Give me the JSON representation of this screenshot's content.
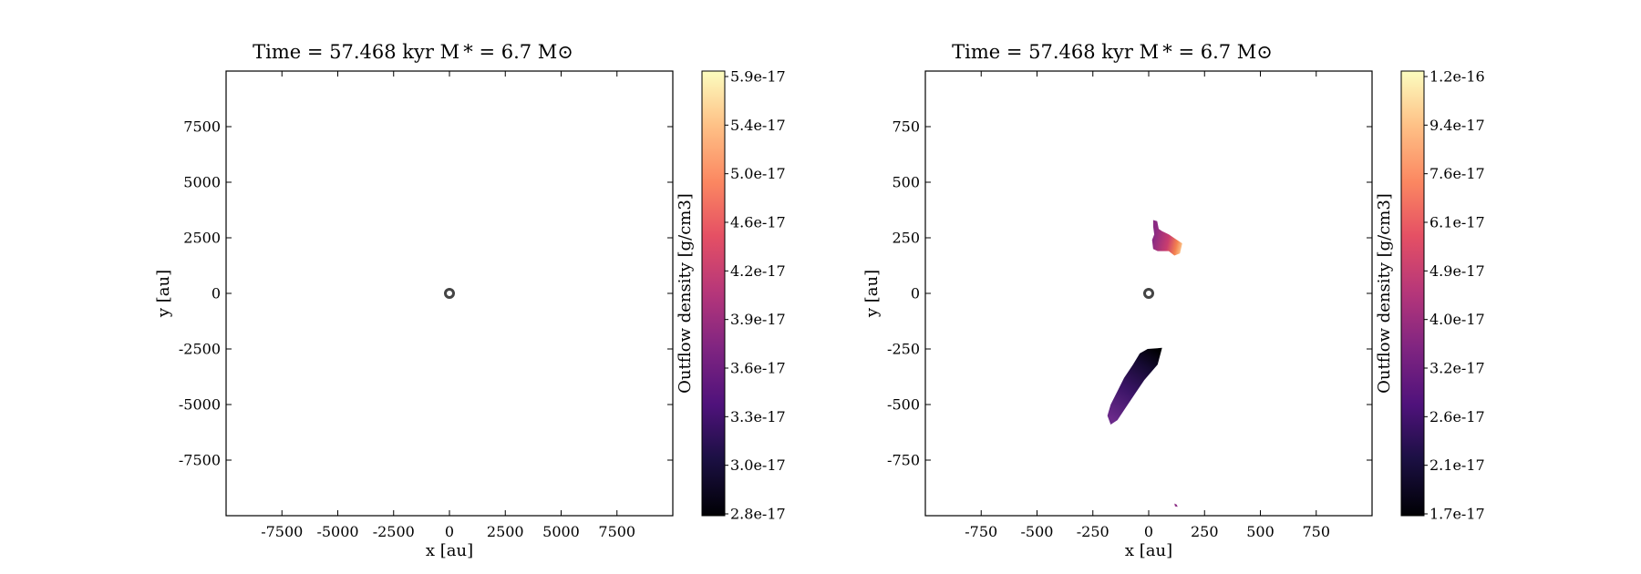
{
  "chart_data": [
    {
      "type": "heatmap",
      "title": "Time = 57.468 kyr    M * = 6.7 M⊙",
      "xlabel": "x [au]",
      "ylabel": "y [au]",
      "xlim": [
        -10000,
        10000
      ],
      "ylim": [
        -10000,
        10000
      ],
      "xticks": [
        -7500,
        -5000,
        -2500,
        0,
        2500,
        5000,
        7500
      ],
      "yticks": [
        7500,
        5000,
        2500,
        0,
        -2500,
        -5000,
        -7500
      ],
      "colorbar": {
        "label": "Outflow density [g/cm3]",
        "colormap": "magma",
        "min": 2.8e-17,
        "max": 5.9e-17,
        "ticks": [
          "2.8e-17",
          "3.0e-17",
          "3.3e-17",
          "3.6e-17",
          "3.9e-17",
          "4.2e-17",
          "4.6e-17",
          "5.0e-17",
          "5.4e-17",
          "5.9e-17"
        ]
      },
      "star": {
        "x": 0,
        "y": 0
      },
      "regions": []
    },
    {
      "type": "heatmap",
      "title": "Time = 57.468 kyr    M * = 6.7 M⊙",
      "xlabel": "x [au]",
      "ylabel": "y [au]",
      "xlim": [
        -1000,
        1000
      ],
      "ylim": [
        -1000,
        1000
      ],
      "xticks": [
        -750,
        -500,
        -250,
        0,
        250,
        500,
        750
      ],
      "yticks": [
        750,
        500,
        250,
        0,
        -250,
        -500,
        -750
      ],
      "colorbar": {
        "label": "Outflow density [g/cm3]",
        "colormap": "magma",
        "min": 1.7e-17,
        "max": 1.2e-16,
        "ticks": [
          "1.7e-17",
          "2.1e-17",
          "2.6e-17",
          "3.2e-17",
          "4.0e-17",
          "4.9e-17",
          "6.1e-17",
          "7.6e-17",
          "9.4e-17",
          "1.2e-16"
        ]
      },
      "star": {
        "x": 0,
        "y": 0
      },
      "regions": [
        {
          "name": "northern-lobe",
          "outline": [
            [
              20,
              330
            ],
            [
              38,
              325
            ],
            [
              45,
              290
            ],
            [
              60,
              280
            ],
            [
              90,
              265
            ],
            [
              120,
              245
            ],
            [
              150,
              225
            ],
            [
              140,
              180
            ],
            [
              115,
              170
            ],
            [
              90,
              190
            ],
            [
              60,
              190
            ],
            [
              40,
              190
            ],
            [
              20,
              200
            ],
            [
              15,
              240
            ],
            [
              25,
              265
            ],
            [
              20,
              300
            ]
          ],
          "gradient": {
            "from": [
              20,
              240
            ],
            "to": [
              150,
              210
            ],
            "stops": [
              [
                0,
                "#8a2a83"
              ],
              [
                0.5,
                "#c93d6f"
              ],
              [
                0.8,
                "#f3814f"
              ],
              [
                1,
                "#fcc58a"
              ]
            ]
          }
        },
        {
          "name": "southern-lobe",
          "outline": [
            [
              -5,
              -250
            ],
            [
              60,
              -245
            ],
            [
              40,
              -320
            ],
            [
              -20,
              -390
            ],
            [
              -60,
              -450
            ],
            [
              -100,
              -510
            ],
            [
              -140,
              -570
            ],
            [
              -170,
              -590
            ],
            [
              -185,
              -550
            ],
            [
              -170,
              -500
            ],
            [
              -140,
              -440
            ],
            [
              -110,
              -380
            ],
            [
              -70,
              -320
            ],
            [
              -40,
              -270
            ]
          ],
          "gradient": {
            "from": [
              -170,
              -560
            ],
            "to": [
              40,
              -260
            ],
            "stops": [
              [
                0,
                "#6b2a8a"
              ],
              [
                0.4,
                "#3a1466"
              ],
              [
                0.75,
                "#160a33"
              ],
              [
                1,
                "#000004"
              ]
            ]
          }
        },
        {
          "name": "small-speck",
          "outline": [
            [
              115,
              -945
            ],
            [
              125,
              -950
            ],
            [
              130,
              -960
            ],
            [
              118,
              -958
            ]
          ],
          "gradient": {
            "from": [
              115,
              -945
            ],
            "to": [
              130,
              -960
            ],
            "stops": [
              [
                0,
                "#8a2a83"
              ],
              [
                1,
                "#8a2a83"
              ]
            ]
          }
        }
      ]
    }
  ]
}
